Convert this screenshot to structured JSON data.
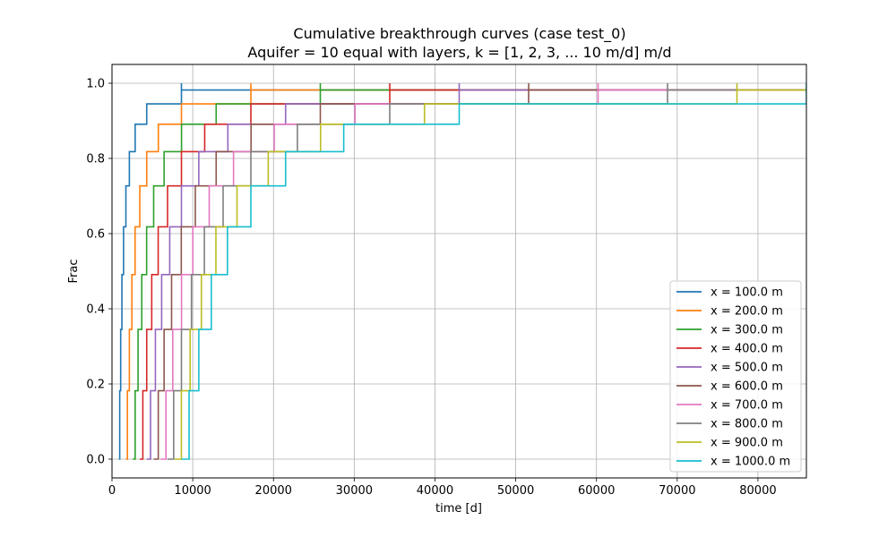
{
  "chart_data": {
    "type": "line",
    "title_line1": "Cumulative breakthrough curves (case test_0)",
    "title_line2": "Aquifer = 10 equal with layers, k = [1, 2, 3, ... 10 m/d] m/d",
    "xlabel": "time [d]",
    "ylabel": "Frac",
    "xlim": [
      0,
      86000
    ],
    "ylim": [
      -0.05,
      1.05
    ],
    "xticks": [
      0,
      10000,
      20000,
      30000,
      40000,
      50000,
      60000,
      70000,
      80000
    ],
    "yticks": [
      0.0,
      0.2,
      0.4,
      0.6,
      0.8,
      1.0
    ],
    "xtick_labels": [
      "0",
      "10000",
      "20000",
      "30000",
      "40000",
      "50000",
      "60000",
      "70000",
      "80000"
    ],
    "ytick_labels": [
      "0.0",
      "0.2",
      "0.4",
      "0.6",
      "0.8",
      "1.0"
    ],
    "grid": true,
    "legend_position": "bottom-right",
    "base_steps": {
      "x": [
        860,
        955,
        1075,
        1230,
        1430,
        1720,
        2150,
        2870,
        4300,
        8600
      ],
      "y": [
        0.0,
        0.182,
        0.345,
        0.491,
        0.618,
        0.727,
        0.818,
        0.891,
        0.945,
        0.982
      ]
    },
    "final_y": 1.0,
    "series": [
      {
        "name": "x = 100.0 m",
        "distance": 100,
        "color": "#1f77b4"
      },
      {
        "name": "x = 200.0 m",
        "distance": 200,
        "color": "#ff7f0e"
      },
      {
        "name": "x = 300.0 m",
        "distance": 300,
        "color": "#2ca02c"
      },
      {
        "name": "x = 400.0 m",
        "distance": 400,
        "color": "#d62728"
      },
      {
        "name": "x = 500.0 m",
        "distance": 500,
        "color": "#9467bd"
      },
      {
        "name": "x = 600.0 m",
        "distance": 600,
        "color": "#8c564b"
      },
      {
        "name": "x = 700.0 m",
        "distance": 700,
        "color": "#e377c2"
      },
      {
        "name": "x = 800.0 m",
        "distance": 800,
        "color": "#7f7f7f"
      },
      {
        "name": "x = 900.0 m",
        "distance": 900,
        "color": "#bcbd22"
      },
      {
        "name": "x = 1000.0 m",
        "distance": 1000,
        "color": "#17becf"
      }
    ]
  }
}
